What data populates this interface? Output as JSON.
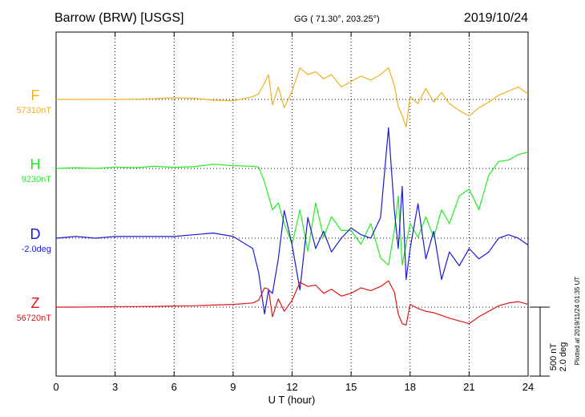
{
  "header": {
    "station": "Barrow (BRW)  [USGS]",
    "coords": "GG ( 71.30°, 203.25°)",
    "date": "2019/10/24"
  },
  "scale": {
    "nt": "500 nT",
    "deg": "2.0 deg"
  },
  "plotted": "Plotted at 2019/11/24 01:35 UT",
  "colors": {
    "F": "#f0b020",
    "H": "#22ee22",
    "D": "#1a1ad8",
    "Z": "#e01818"
  },
  "chart_data": {
    "type": "line",
    "title": "Barrow (BRW)  [USGS]",
    "xlabel": "U T (hour)",
    "ylabel": "",
    "xlim": [
      0,
      24
    ],
    "xticks": [
      "0",
      "3",
      "6",
      "9",
      "12",
      "15",
      "18",
      "21",
      "24"
    ],
    "grid": true,
    "series": [
      {
        "name": "F",
        "baseline": "57310nT",
        "unit": "nT",
        "x": [
          0,
          1,
          2,
          3,
          4,
          5,
          6,
          7,
          8,
          9,
          10,
          10.3,
          10.6,
          10.8,
          11,
          11.3,
          11.6,
          12,
          12.4,
          12.8,
          13.2,
          13.6,
          14,
          14.5,
          15,
          15.5,
          16,
          16.5,
          16.9,
          17.2,
          17.4,
          17.6,
          17.8,
          18,
          18.4,
          18.8,
          19.2,
          19.6,
          20,
          20.5,
          21,
          21.5,
          22,
          22.5,
          23,
          23.5,
          24
        ],
        "values": [
          0,
          0,
          1,
          0,
          2,
          5,
          12,
          8,
          -5,
          -10,
          20,
          40,
          120,
          180,
          -40,
          90,
          -60,
          60,
          230,
          180,
          200,
          150,
          180,
          90,
          130,
          170,
          140,
          180,
          230,
          100,
          -50,
          -120,
          -200,
          20,
          -30,
          80,
          -20,
          50,
          -30,
          -80,
          -120,
          -60,
          -20,
          30,
          60,
          90,
          40
        ]
      },
      {
        "name": "H",
        "baseline": "9230nT",
        "unit": "nT",
        "x": [
          0,
          1,
          2,
          3,
          4,
          5,
          6,
          7,
          8,
          9,
          10,
          10.3,
          10.6,
          10.8,
          11,
          11.3,
          11.6,
          12,
          12.4,
          12.8,
          13.2,
          13.6,
          14,
          14.5,
          15,
          15.5,
          16,
          16.5,
          16.9,
          17.2,
          17.4,
          17.6,
          17.8,
          18,
          18.4,
          18.8,
          19.2,
          19.6,
          20,
          20.5,
          21,
          21.5,
          22,
          22.5,
          23,
          23.5,
          24
        ],
        "values": [
          0,
          5,
          0,
          10,
          5,
          15,
          8,
          12,
          30,
          20,
          15,
          10,
          -100,
          -200,
          -300,
          -250,
          -400,
          -550,
          -300,
          -600,
          -250,
          -500,
          -350,
          -450,
          -450,
          -550,
          -400,
          -650,
          -700,
          -450,
          -200,
          -700,
          -550,
          -400,
          -500,
          -350,
          -500,
          -300,
          -400,
          -200,
          -150,
          -300,
          -50,
          50,
          60,
          100,
          120
        ]
      },
      {
        "name": "D",
        "baseline": "-2.0deg",
        "unit": "deg",
        "x": [
          0,
          1,
          2,
          3,
          4,
          5,
          6,
          7,
          8,
          9,
          10,
          10.3,
          10.6,
          10.8,
          11,
          11.3,
          11.6,
          12,
          12.4,
          12.8,
          13.2,
          13.6,
          14,
          14.5,
          15,
          15.5,
          16,
          16.5,
          16.9,
          17.2,
          17.4,
          17.6,
          17.8,
          18,
          18.4,
          18.8,
          19.2,
          19.6,
          20,
          20.5,
          21,
          21.5,
          22,
          22.5,
          23,
          23.5,
          24
        ],
        "values": [
          0,
          0.05,
          0,
          0.05,
          0.05,
          0.05,
          0.05,
          0.1,
          0.15,
          0.05,
          -0.3,
          -1.0,
          -2.2,
          -1.5,
          -1.6,
          -0.6,
          0.8,
          -0.2,
          -1.5,
          0.6,
          -0.3,
          0.2,
          -0.4,
          0,
          0.3,
          0.1,
          0,
          0.6,
          3.2,
          0.8,
          -0.3,
          1.5,
          -1.2,
          -0.3,
          1.0,
          -0.6,
          0.2,
          -1.2,
          -0.4,
          -0.8,
          -0.3,
          -0.6,
          -0.4,
          0,
          0.1,
          0,
          -0.2
        ]
      },
      {
        "name": "Z",
        "baseline": "56720nT",
        "unit": "nT",
        "x": [
          0,
          1,
          2,
          3,
          4,
          5,
          6,
          7,
          8,
          9,
          10,
          10.3,
          10.6,
          10.8,
          11,
          11.3,
          11.6,
          12,
          12.4,
          12.8,
          13.2,
          13.6,
          14,
          14.5,
          15,
          15.5,
          16,
          16.5,
          16.9,
          17.2,
          17.4,
          17.6,
          17.8,
          18,
          18.4,
          18.8,
          19.2,
          19.6,
          20,
          20.5,
          21,
          21.5,
          22,
          22.5,
          23,
          23.5,
          24
        ],
        "values": [
          0,
          0,
          2,
          3,
          4,
          5,
          8,
          10,
          15,
          20,
          30,
          50,
          140,
          130,
          -70,
          60,
          -30,
          50,
          180,
          150,
          160,
          100,
          130,
          80,
          100,
          140,
          120,
          150,
          190,
          110,
          -50,
          -120,
          -130,
          20,
          -10,
          -30,
          -40,
          -60,
          -80,
          -100,
          -120,
          -70,
          -30,
          10,
          30,
          40,
          20
        ]
      }
    ]
  }
}
